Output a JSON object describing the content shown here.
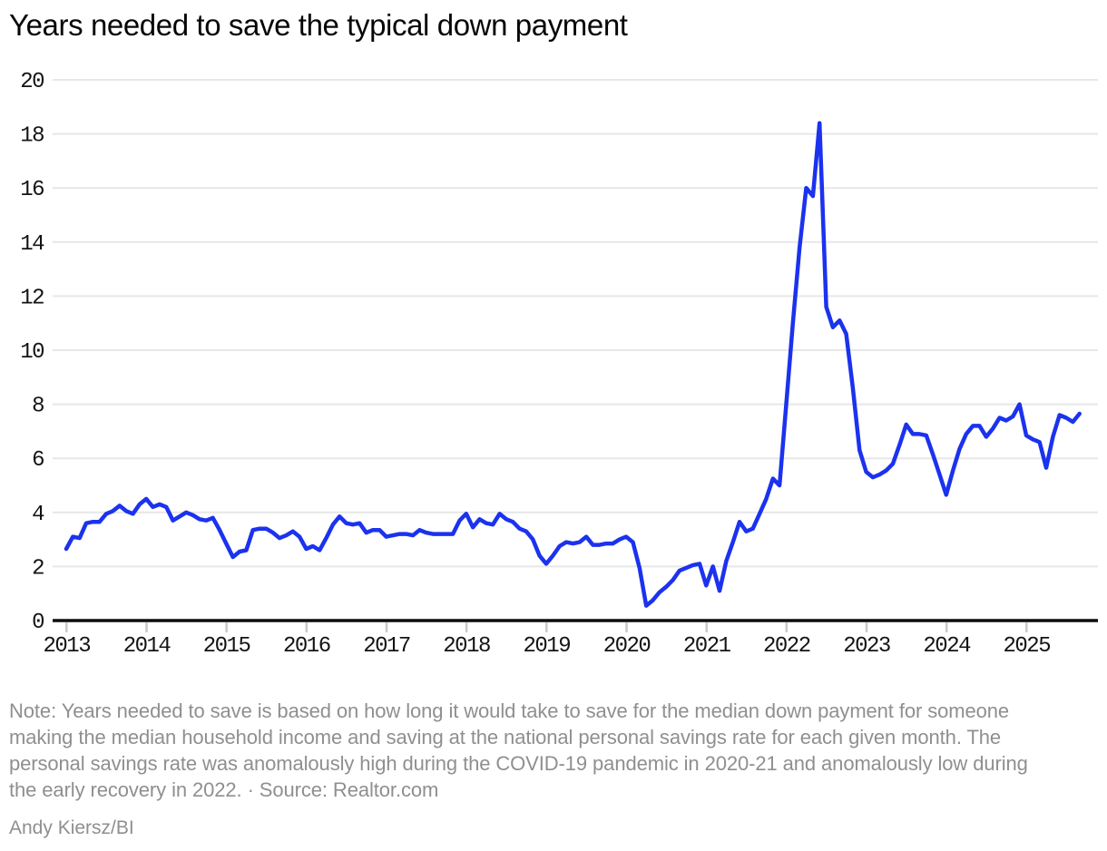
{
  "title": "Years needed to save the typical down payment",
  "note": "Note: Years needed to save is based on how long it would take to save for the median down payment for someone making the median household income and saving at the national personal savings rate for each given month. The personal savings rate was anomalously high during the COVID-19 pandemic in 2020-21 and anomalously low during the early recovery in 2022. · Source: Realtor.com",
  "credit": "Andy Kiersz/BI",
  "colors": {
    "line": "#1B32EE",
    "grid": "#e7e7e7",
    "axis": "#0d0d0d",
    "tick": "#c9c9c9",
    "label": "#141414",
    "note": "#8f8f8f"
  },
  "chart_data": {
    "type": "line",
    "title": "Years needed to save the typical down payment",
    "xlabel": "",
    "ylabel": "",
    "frequency": "monthly",
    "x_range": {
      "start": "2013-01",
      "end": "2025-09"
    },
    "ylim": [
      0,
      20
    ],
    "y_ticks": [
      0,
      2,
      4,
      6,
      8,
      10,
      12,
      14,
      16,
      18,
      20
    ],
    "x_tick_labels": [
      "2013",
      "2014",
      "2015",
      "2016",
      "2017",
      "2018",
      "2019",
      "2020",
      "2021",
      "2022",
      "2023",
      "2024",
      "2025"
    ],
    "grid": "horizontal",
    "legend": "none",
    "series": [
      {
        "name": "Years needed to save",
        "values": [
          2.65,
          3.1,
          3.05,
          3.6,
          3.65,
          3.65,
          3.95,
          4.05,
          4.25,
          4.05,
          3.95,
          4.3,
          4.5,
          4.2,
          4.3,
          4.2,
          3.7,
          3.85,
          4.0,
          3.9,
          3.75,
          3.7,
          3.8,
          3.35,
          2.85,
          2.35,
          2.55,
          2.6,
          3.35,
          3.4,
          3.4,
          3.25,
          3.05,
          3.15,
          3.3,
          3.1,
          2.65,
          2.75,
          2.6,
          3.05,
          3.55,
          3.85,
          3.6,
          3.55,
          3.6,
          3.25,
          3.35,
          3.35,
          3.1,
          3.15,
          3.2,
          3.2,
          3.15,
          3.35,
          3.25,
          3.2,
          3.2,
          3.2,
          3.2,
          3.7,
          3.95,
          3.45,
          3.75,
          3.6,
          3.55,
          3.95,
          3.75,
          3.65,
          3.4,
          3.3,
          3.0,
          2.4,
          2.1,
          2.4,
          2.75,
          2.9,
          2.85,
          2.9,
          3.1,
          2.8,
          2.8,
          2.85,
          2.85,
          3.0,
          3.1,
          2.9,
          1.95,
          0.55,
          0.75,
          1.05,
          1.25,
          1.5,
          1.85,
          1.95,
          2.05,
          2.1,
          1.3,
          2.0,
          1.1,
          2.2,
          2.9,
          3.65,
          3.3,
          3.4,
          3.95,
          4.5,
          5.25,
          5.0,
          8.0,
          11.0,
          13.8,
          16.0,
          15.7,
          18.4,
          11.6,
          10.85,
          11.1,
          10.6,
          8.6,
          6.3,
          5.5,
          5.3,
          5.4,
          5.55,
          5.8,
          6.5,
          7.25,
          6.9,
          6.9,
          6.85,
          6.15,
          5.4,
          4.65,
          5.55,
          6.35,
          6.9,
          7.2,
          7.2,
          6.8,
          7.1,
          7.5,
          7.4,
          7.55,
          8.0,
          6.85,
          6.7,
          6.6,
          5.65,
          6.8,
          7.6,
          7.5,
          7.35,
          7.65
        ]
      }
    ]
  }
}
